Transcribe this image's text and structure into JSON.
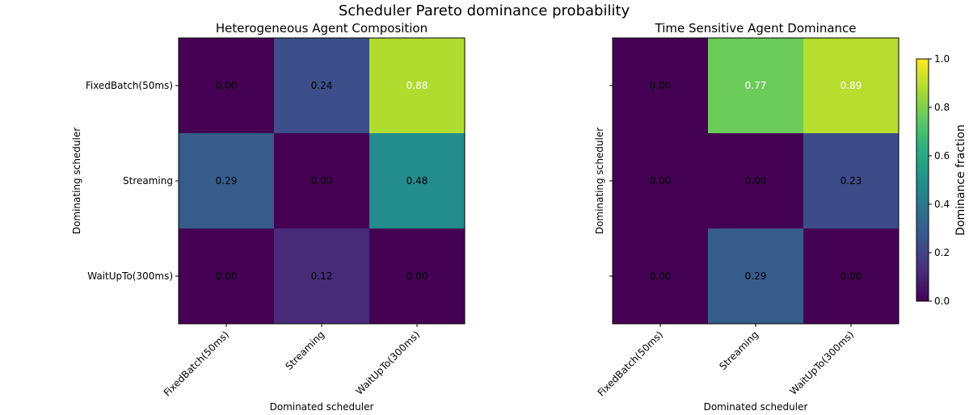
{
  "title": "Scheduler Pareto dominance probability",
  "colorbar": {
    "label": "Dominance fraction",
    "range": [
      0.0,
      1.0
    ],
    "ticks": [
      "0.0",
      "0.2",
      "0.4",
      "0.6",
      "0.8",
      "1.0"
    ],
    "colormap": "viridis"
  },
  "chart_data": [
    {
      "type": "heatmap",
      "title": "Heterogeneous Agent Composition",
      "xlabel": "Dominated scheduler",
      "ylabel": "Dominating scheduler",
      "x_categories": [
        "FixedBatch(50ms)",
        "Streaming",
        "WaitUpTo(300ms)"
      ],
      "y_categories": [
        "FixedBatch(50ms)",
        "Streaming",
        "WaitUpTo(300ms)"
      ],
      "values": [
        [
          0.0,
          0.24,
          0.88
        ],
        [
          0.29,
          0.0,
          0.48
        ],
        [
          0.0,
          0.12,
          0.0
        ]
      ],
      "labels": [
        [
          "0.00",
          "0.24",
          "0.88"
        ],
        [
          "0.29",
          "0.00",
          "0.48"
        ],
        [
          "0.00",
          "0.12",
          "0.00"
        ]
      ],
      "show_y_tick_labels": true
    },
    {
      "type": "heatmap",
      "title": "Time Sensitive Agent Dominance",
      "xlabel": "Dominated scheduler",
      "ylabel": "Dominating scheduler",
      "x_categories": [
        "FixedBatch(50ms)",
        "Streaming",
        "WaitUpTo(300ms)"
      ],
      "y_categories": [
        "FixedBatch(50ms)",
        "Streaming",
        "WaitUpTo(300ms)"
      ],
      "values": [
        [
          0.0,
          0.77,
          0.89
        ],
        [
          0.0,
          0.0,
          0.23
        ],
        [
          0.0,
          0.29,
          0.0
        ]
      ],
      "labels": [
        [
          "0.00",
          "0.77",
          "0.89"
        ],
        [
          "0.00",
          "0.00",
          "0.23"
        ],
        [
          "0.00",
          "0.29",
          "0.00"
        ]
      ],
      "show_y_tick_labels": false
    }
  ]
}
